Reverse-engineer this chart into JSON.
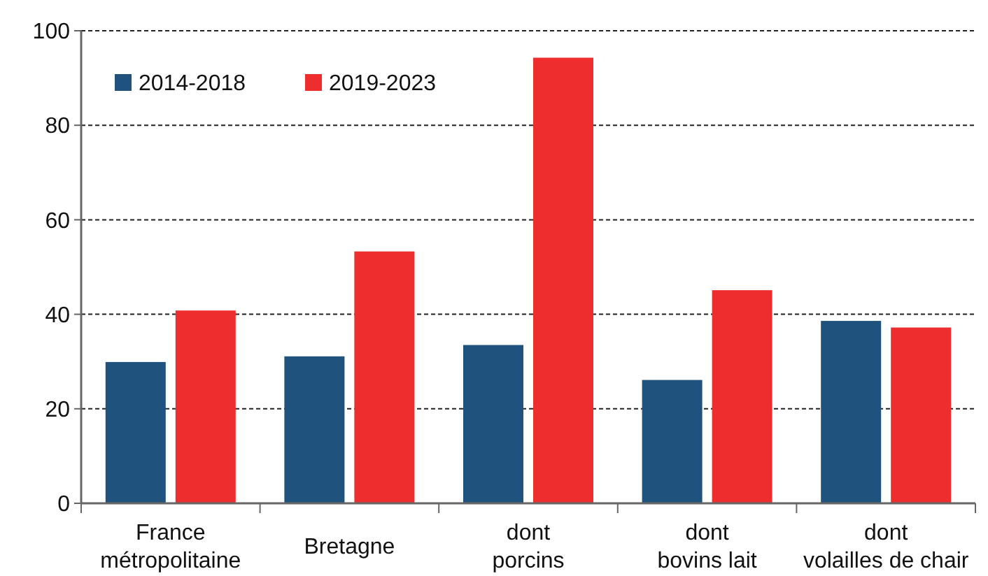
{
  "chart_data": {
    "type": "bar",
    "categories": [
      "France\nmétropolitaine",
      "Bretagne",
      "dont\nporcins",
      "dont\nbovins lait",
      "dont\nvolailles de chair"
    ],
    "series": [
      {
        "name": "2014-2018",
        "color": "#1f537d",
        "values": [
          29.9,
          31.1,
          33.5,
          26.1,
          38.6
        ]
      },
      {
        "name": "2019-2023",
        "color": "#ee2e2e",
        "values": [
          40.8,
          53.3,
          94.3,
          45.1,
          37.2
        ]
      }
    ],
    "ylim": [
      0,
      100
    ],
    "yticks": [
      0,
      20,
      40,
      60,
      80,
      100
    ],
    "grid": "y",
    "legend": "top left"
  }
}
